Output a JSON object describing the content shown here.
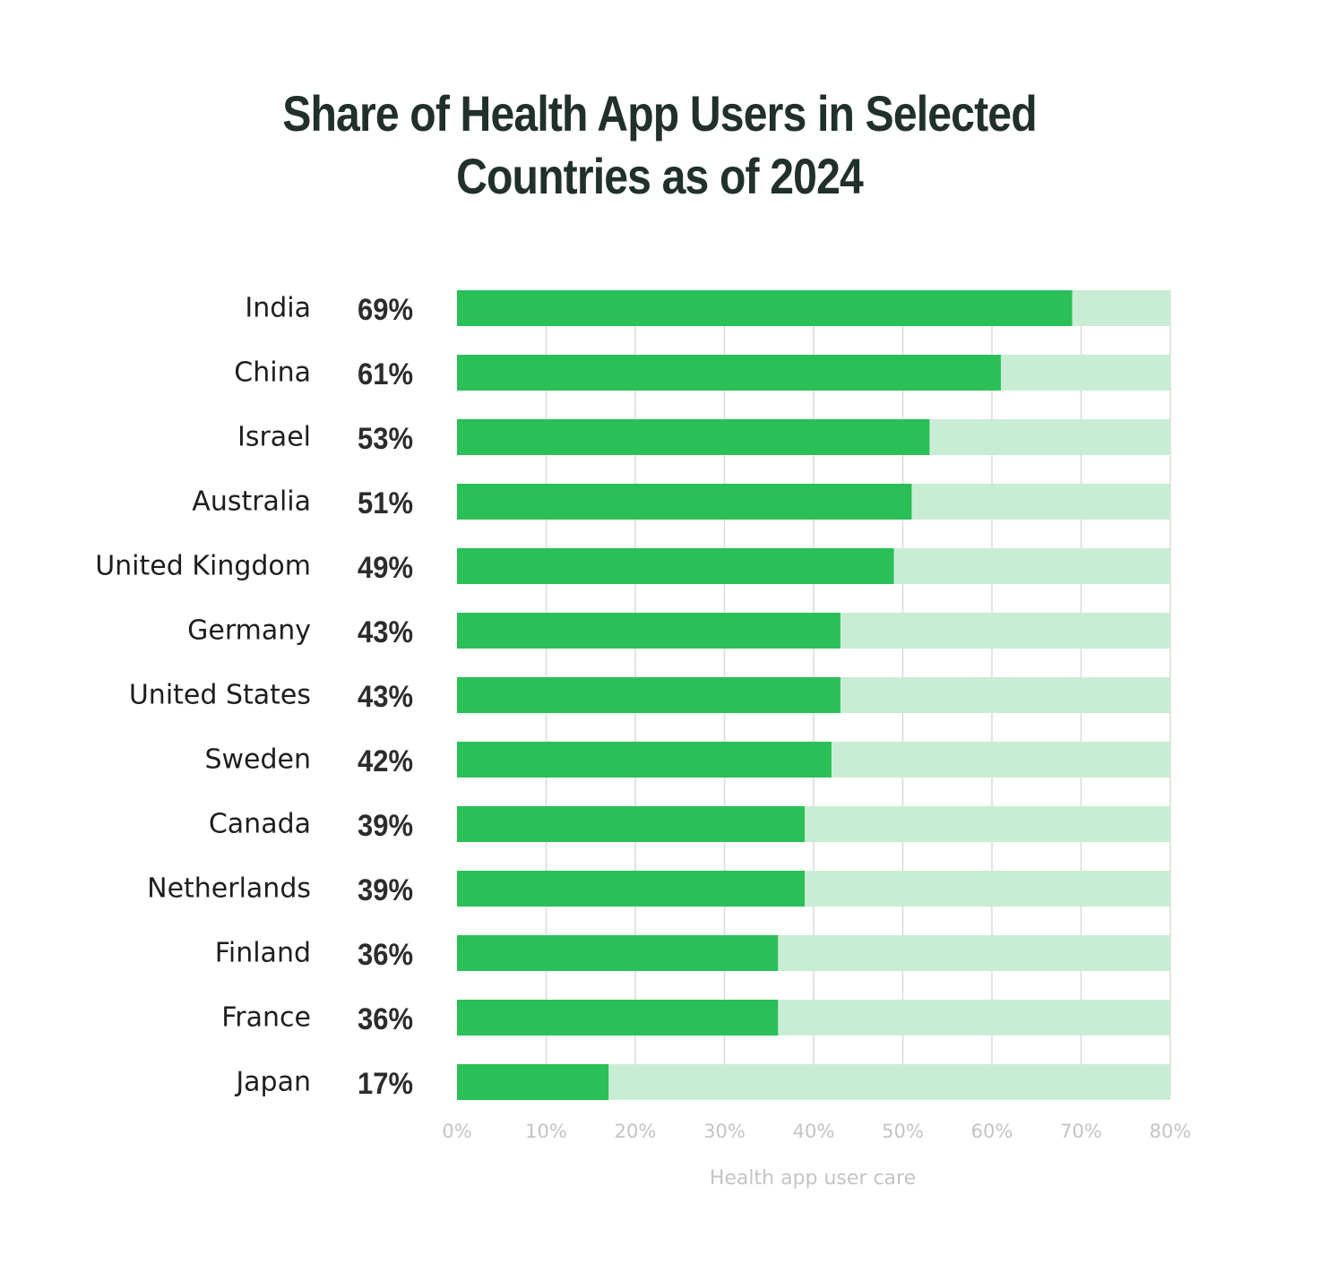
{
  "chart_data": {
    "type": "bar",
    "orientation": "horizontal",
    "title": [
      "Share of Health App Users in Selected",
      "Countries as of 2024"
    ],
    "categories": [
      "India",
      "China",
      "Israel",
      "Australia",
      "United Kingdom",
      "Germany",
      "United States",
      "Sweden",
      "Canada",
      "Netherlands",
      "Finland",
      "France",
      "Japan"
    ],
    "values": [
      69,
      61,
      53,
      51,
      49,
      43,
      43,
      42,
      39,
      39,
      36,
      36,
      17
    ],
    "value_labels": [
      "69%",
      "61%",
      "53%",
      "51%",
      "49%",
      "43%",
      "43%",
      "42%",
      "39%",
      "39%",
      "36%",
      "36%",
      "17%"
    ],
    "xlim": [
      0,
      80
    ],
    "x_ticks": [
      "0%",
      "10%",
      "20%",
      "30%",
      "40%",
      "50%",
      "60%",
      "70%",
      "80%"
    ],
    "xlabel": "Health app user care",
    "ylabel": "",
    "grid": true,
    "legend": "none"
  },
  "colors": {
    "bar": "#2bbf58",
    "bar_track": "#c9edd4",
    "grid": "#dadada",
    "title": "#21302a"
  }
}
